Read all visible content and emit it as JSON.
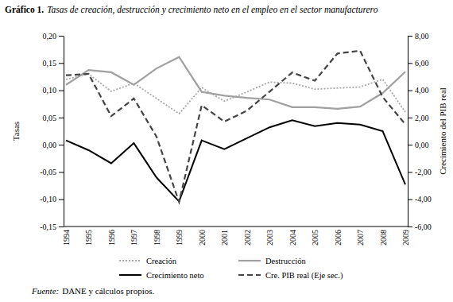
{
  "chart_data": {
    "type": "line",
    "title": "Gráfico 1.",
    "subtitle": "Tasas de creación, destrucción y crecimiento neto en el empleo en el sector manufacturero",
    "y_label": "Tasas",
    "y2_label": "Crecimiento del PIB real",
    "source_label": "Fuente:",
    "source": "DANE y cálculos propios.",
    "categories": [
      "1994",
      "1995",
      "1996",
      "1997",
      "1998",
      "1999",
      "2000",
      "2001",
      "2002",
      "2003",
      "2004",
      "2005",
      "2006",
      "2007",
      "2008",
      "2009"
    ],
    "ylim": [
      -0.15,
      0.2
    ],
    "yticks": [
      {
        "value": -0.15,
        "label": "-0,15"
      },
      {
        "value": -0.1,
        "label": "-0,10"
      },
      {
        "value": -0.05,
        "label": "-0,05"
      },
      {
        "value": 0,
        "label": "0,00"
      },
      {
        "value": 0.05,
        "label": "0,05"
      },
      {
        "value": 0.1,
        "label": "0,10"
      },
      {
        "value": 0.15,
        "label": "0,15"
      },
      {
        "value": 0.2,
        "label": "0,20"
      }
    ],
    "y2lim": [
      -6,
      8
    ],
    "y2ticks": [
      {
        "value": -6,
        "label": "-6,00"
      },
      {
        "value": -4,
        "label": "-4,00"
      },
      {
        "value": -2,
        "label": "-2,00"
      },
      {
        "value": 0,
        "label": "0,00"
      },
      {
        "value": 2,
        "label": "2,00"
      },
      {
        "value": 4,
        "label": "4,00"
      },
      {
        "value": 6,
        "label": "6,00"
      },
      {
        "value": 8,
        "label": "8,00"
      }
    ],
    "grid": false,
    "legend": "bottom",
    "series": [
      {
        "name": "Creación",
        "color": "#a8a8a8",
        "line_style": "dotted",
        "values": [
          0.12,
          0.13,
          0.098,
          0.113,
          0.085,
          0.057,
          0.105,
          0.08,
          0.097,
          0.115,
          0.113,
          0.102,
          0.104,
          0.106,
          0.12,
          0.06
        ]
      },
      {
        "name": "Destrucción",
        "color": "#a0a0a0",
        "line_style": "solid",
        "values": [
          0.11,
          0.137,
          0.133,
          0.11,
          0.14,
          0.161,
          0.097,
          0.09,
          0.086,
          0.083,
          0.069,
          0.069,
          0.066,
          0.07,
          0.095,
          0.134
        ]
      },
      {
        "name": "Crecimiento neto",
        "color": "#000000",
        "line_style": "solid",
        "values": [
          0.008,
          -0.01,
          -0.034,
          0.003,
          -0.06,
          -0.104,
          0.008,
          -0.008,
          0.012,
          0.032,
          0.045,
          0.034,
          0.04,
          0.037,
          0.025,
          -0.073
        ]
      },
      {
        "name": "Cre. PIB real (Eje sec.)",
        "color": "#444444",
        "line_style": "dashed",
        "axis": "y2",
        "values": [
          5.1,
          5.2,
          2.1,
          3.4,
          0.6,
          -4.2,
          2.9,
          1.7,
          2.5,
          3.9,
          5.3,
          4.7,
          6.7,
          6.9,
          3.5,
          1.5
        ]
      }
    ]
  }
}
